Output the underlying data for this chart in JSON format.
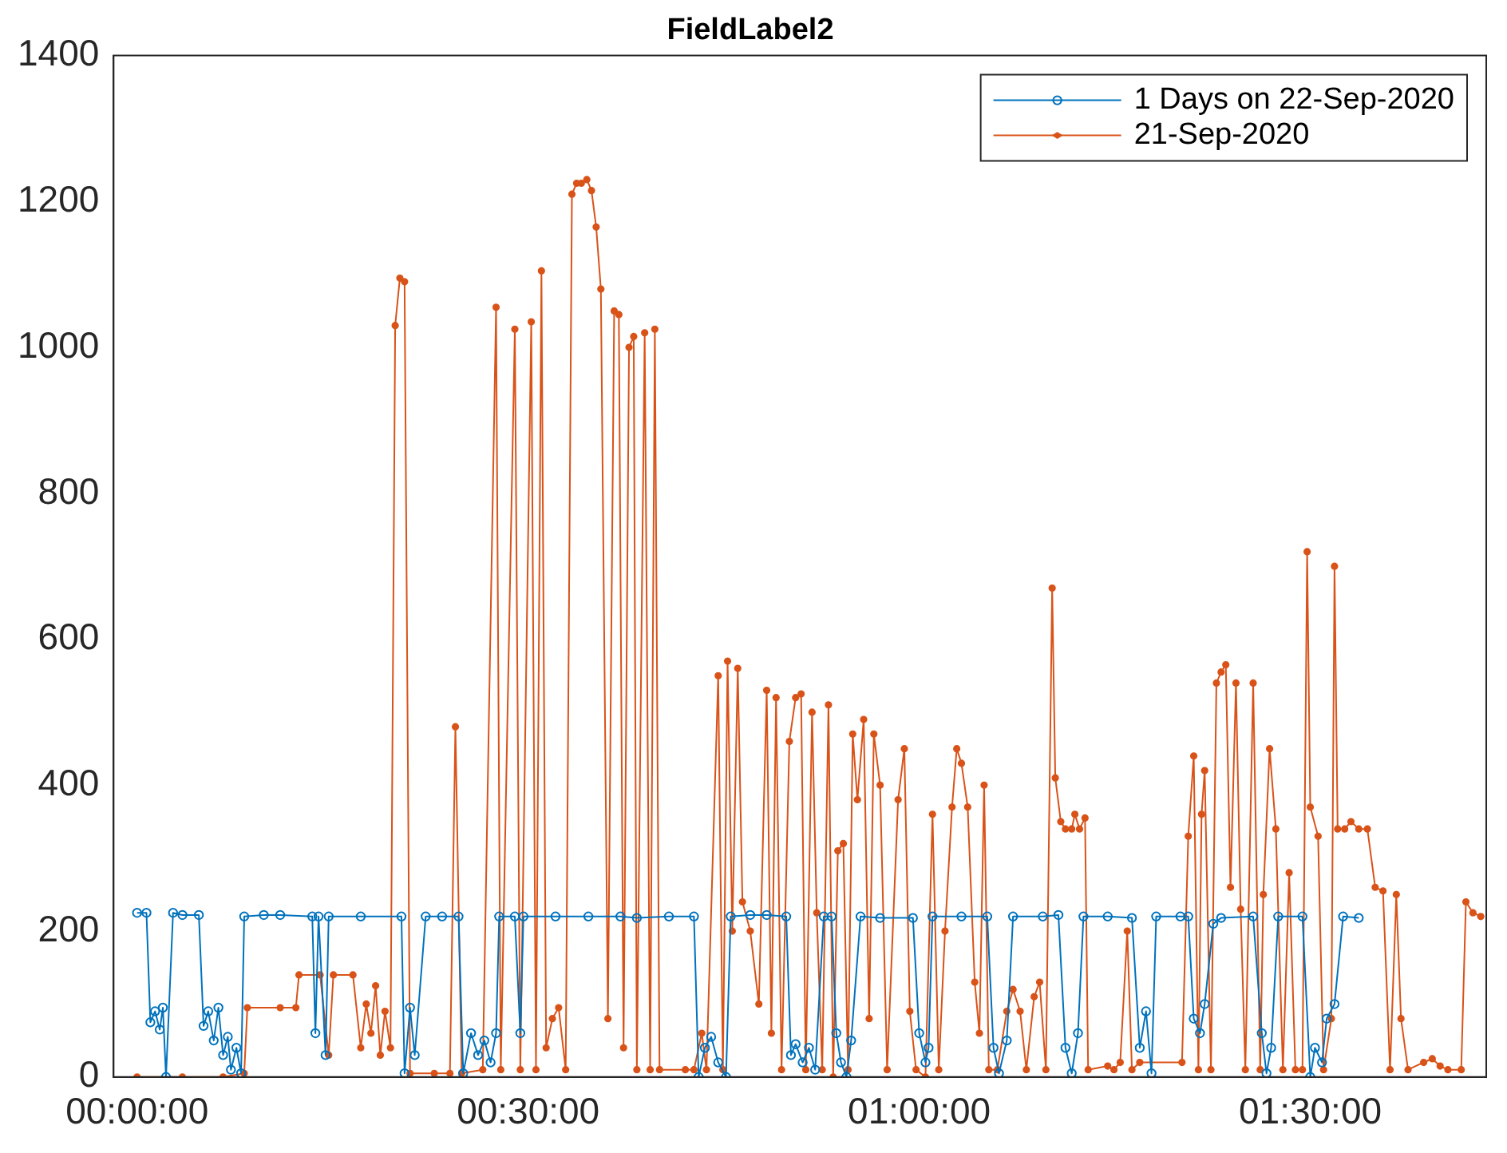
{
  "chart_data": {
    "type": "line",
    "title": "FieldLabel2",
    "xlim": [
      -0.03,
      1.725
    ],
    "xticks": [
      {
        "value": 0,
        "label": "00:00:00"
      },
      {
        "value": 0.5,
        "label": "00:30:00"
      },
      {
        "value": 1,
        "label": "01:00:00"
      },
      {
        "value": 1.5,
        "label": "01:30:00"
      }
    ],
    "ylim": [
      0,
      1400
    ],
    "yticks": [
      0,
      200,
      400,
      600,
      800,
      1000,
      1200,
      1400
    ],
    "grid": false,
    "legend": "top right",
    "marker": "circle",
    "line_style": "solid",
    "series": [
      {
        "name": "1 Days on 22-Sep-2020",
        "color": "#0072bd",
        "x": [
          0.0,
          0.012,
          0.017,
          0.023,
          0.029,
          0.033,
          0.037,
          0.046,
          0.058,
          0.079,
          0.085,
          0.091,
          0.098,
          0.104,
          0.11,
          0.116,
          0.12,
          0.127,
          0.133,
          0.137,
          0.162,
          0.183,
          0.224,
          0.228,
          0.232,
          0.241,
          0.245,
          0.286,
          0.338,
          0.342,
          0.349,
          0.355,
          0.369,
          0.39,
          0.411,
          0.417,
          0.427,
          0.436,
          0.444,
          0.452,
          0.459,
          0.463,
          0.483,
          0.49,
          0.494,
          0.535,
          0.577,
          0.618,
          0.639,
          0.68,
          0.712,
          0.718,
          0.726,
          0.734,
          0.743,
          0.753,
          0.759,
          0.784,
          0.805,
          0.83,
          0.836,
          0.842,
          0.851,
          0.859,
          0.867,
          0.878,
          0.888,
          0.894,
          0.9,
          0.907,
          0.913,
          0.925,
          0.95,
          0.992,
          1.0,
          1.008,
          1.012,
          1.017,
          1.054,
          1.087,
          1.095,
          1.102,
          1.112,
          1.12,
          1.158,
          1.178,
          1.187,
          1.195,
          1.203,
          1.21,
          1.241,
          1.272,
          1.282,
          1.29,
          1.297,
          1.303,
          1.334,
          1.344,
          1.351,
          1.359,
          1.365,
          1.376,
          1.386,
          1.427,
          1.438,
          1.444,
          1.45,
          1.459,
          1.49,
          1.5,
          1.506,
          1.515,
          1.521,
          1.531,
          1.542,
          1.562
        ],
        "values": [
          225,
          225,
          75,
          90,
          65,
          95,
          0,
          225,
          222,
          222,
          70,
          90,
          50,
          95,
          30,
          55,
          10,
          40,
          5,
          220,
          222,
          222,
          220,
          60,
          220,
          30,
          220,
          220,
          220,
          5,
          95,
          30,
          220,
          220,
          220,
          5,
          60,
          30,
          50,
          20,
          60,
          220,
          220,
          60,
          220,
          220,
          220,
          220,
          218,
          220,
          220,
          0,
          40,
          55,
          20,
          0,
          220,
          222,
          222,
          220,
          30,
          45,
          20,
          40,
          10,
          220,
          220,
          60,
          20,
          0,
          50,
          220,
          218,
          218,
          60,
          20,
          40,
          220,
          220,
          220,
          40,
          5,
          50,
          220,
          220,
          222,
          40,
          5,
          60,
          220,
          220,
          218,
          40,
          90,
          5,
          220,
          220,
          220,
          80,
          60,
          100,
          210,
          218,
          220,
          60,
          5,
          40,
          220,
          220,
          0,
          40,
          20,
          80,
          100,
          220,
          218
        ]
      },
      {
        "name": "21-Sep-2020",
        "color": "#d95319",
        "x": [
          0.0,
          0.058,
          0.11,
          0.137,
          0.141,
          0.183,
          0.203,
          0.207,
          0.234,
          0.245,
          0.251,
          0.276,
          0.286,
          0.293,
          0.299,
          0.305,
          0.311,
          0.317,
          0.324,
          0.33,
          0.336,
          0.342,
          0.349,
          0.38,
          0.4,
          0.407,
          0.415,
          0.442,
          0.459,
          0.465,
          0.483,
          0.49,
          0.504,
          0.51,
          0.517,
          0.523,
          0.531,
          0.539,
          0.548,
          0.556,
          0.562,
          0.568,
          0.575,
          0.581,
          0.587,
          0.593,
          0.602,
          0.61,
          0.616,
          0.622,
          0.629,
          0.635,
          0.639,
          0.649,
          0.656,
          0.662,
          0.668,
          0.701,
          0.712,
          0.722,
          0.728,
          0.743,
          0.749,
          0.755,
          0.761,
          0.768,
          0.774,
          0.784,
          0.795,
          0.805,
          0.811,
          0.817,
          0.824,
          0.834,
          0.842,
          0.849,
          0.855,
          0.863,
          0.869,
          0.876,
          0.884,
          0.89,
          0.896,
          0.903,
          0.909,
          0.915,
          0.921,
          0.929,
          0.936,
          0.942,
          0.95,
          0.959,
          0.973,
          0.981,
          0.988,
          0.996,
          1.008,
          1.017,
          1.025,
          1.033,
          1.042,
          1.048,
          1.054,
          1.062,
          1.071,
          1.077,
          1.083,
          1.089,
          1.1,
          1.112,
          1.12,
          1.129,
          1.137,
          1.147,
          1.154,
          1.162,
          1.17,
          1.174,
          1.181,
          1.187,
          1.195,
          1.199,
          1.205,
          1.212,
          1.216,
          1.241,
          1.249,
          1.257,
          1.266,
          1.272,
          1.282,
          1.336,
          1.344,
          1.351,
          1.357,
          1.361,
          1.365,
          1.373,
          1.38,
          1.386,
          1.392,
          1.398,
          1.405,
          1.411,
          1.417,
          1.427,
          1.436,
          1.44,
          1.448,
          1.456,
          1.465,
          1.473,
          1.481,
          1.49,
          1.496,
          1.5,
          1.51,
          1.517,
          1.527,
          1.531,
          1.535,
          1.544,
          1.552,
          1.562,
          1.573,
          1.583,
          1.593,
          1.602,
          1.61,
          1.616,
          1.625,
          1.645,
          1.656,
          1.666,
          1.676,
          1.693,
          1.699,
          1.708,
          1.718
        ],
        "values": [
          0,
          0,
          0,
          5,
          95,
          95,
          95,
          140,
          140,
          30,
          140,
          140,
          40,
          100,
          60,
          125,
          30,
          90,
          40,
          1030,
          1095,
          1090,
          5,
          5,
          5,
          480,
          5,
          10,
          1055,
          10,
          1025,
          10,
          1035,
          10,
          1105,
          40,
          80,
          95,
          10,
          1210,
          1225,
          1225,
          1230,
          1215,
          1165,
          1080,
          80,
          1050,
          1045,
          40,
          1000,
          1015,
          10,
          1020,
          10,
          1025,
          10,
          10,
          10,
          60,
          10,
          550,
          10,
          570,
          200,
          560,
          240,
          200,
          100,
          530,
          60,
          520,
          10,
          460,
          520,
          525,
          10,
          500,
          225,
          10,
          510,
          0,
          310,
          320,
          10,
          470,
          380,
          490,
          80,
          470,
          400,
          10,
          380,
          450,
          90,
          10,
          0,
          360,
          10,
          200,
          370,
          450,
          430,
          370,
          130,
          60,
          400,
          10,
          10,
          90,
          120,
          90,
          10,
          110,
          130,
          10,
          670,
          410,
          350,
          340,
          340,
          360,
          340,
          355,
          10,
          15,
          10,
          20,
          200,
          10,
          20,
          20,
          330,
          440,
          10,
          360,
          420,
          10,
          540,
          555,
          565,
          260,
          540,
          230,
          10,
          540,
          10,
          250,
          450,
          340,
          10,
          280,
          10,
          10,
          720,
          370,
          330,
          10,
          80,
          700,
          340,
          340,
          350,
          340,
          340,
          260,
          255,
          10,
          250,
          80,
          10,
          20,
          25,
          15,
          10,
          10,
          240,
          225,
          220
        ]
      }
    ]
  }
}
